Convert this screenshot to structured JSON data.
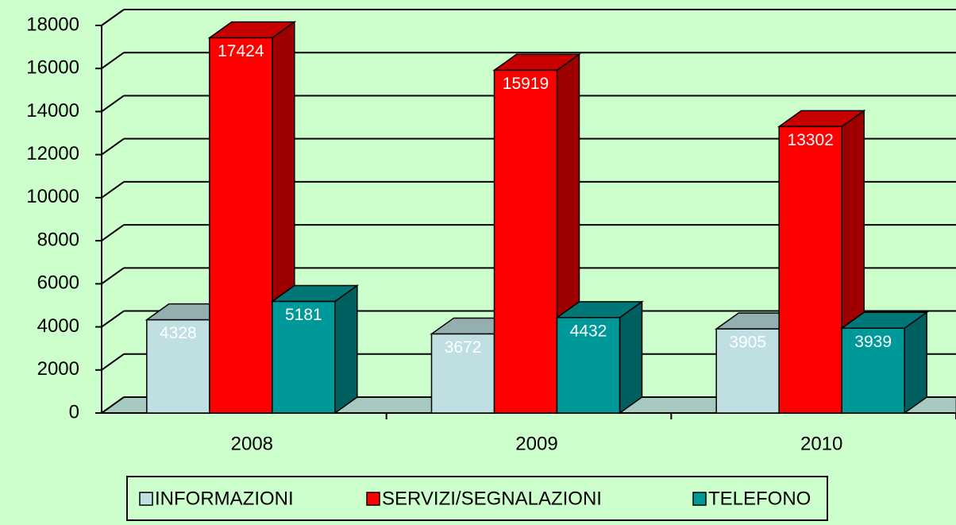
{
  "chart_data": {
    "type": "bar",
    "categories": [
      "2008",
      "2009",
      "2010"
    ],
    "series": [
      {
        "name": "INFORMAZIONI",
        "color": "#bfdfe2",
        "values": [
          4328,
          3672,
          3905
        ]
      },
      {
        "name": "SERVIZI/SEGNALAZIONI",
        "color": "#ff0000",
        "values": [
          17424,
          15919,
          13302
        ]
      },
      {
        "name": "TELEFONO",
        "color": "#009999",
        "values": [
          5181,
          4432,
          3939
        ]
      }
    ],
    "ylim": [
      0,
      18000
    ],
    "yticks": [
      0,
      2000,
      4000,
      6000,
      8000,
      10000,
      12000,
      14000,
      16000,
      18000
    ],
    "grid": true,
    "legend": "bottom"
  }
}
